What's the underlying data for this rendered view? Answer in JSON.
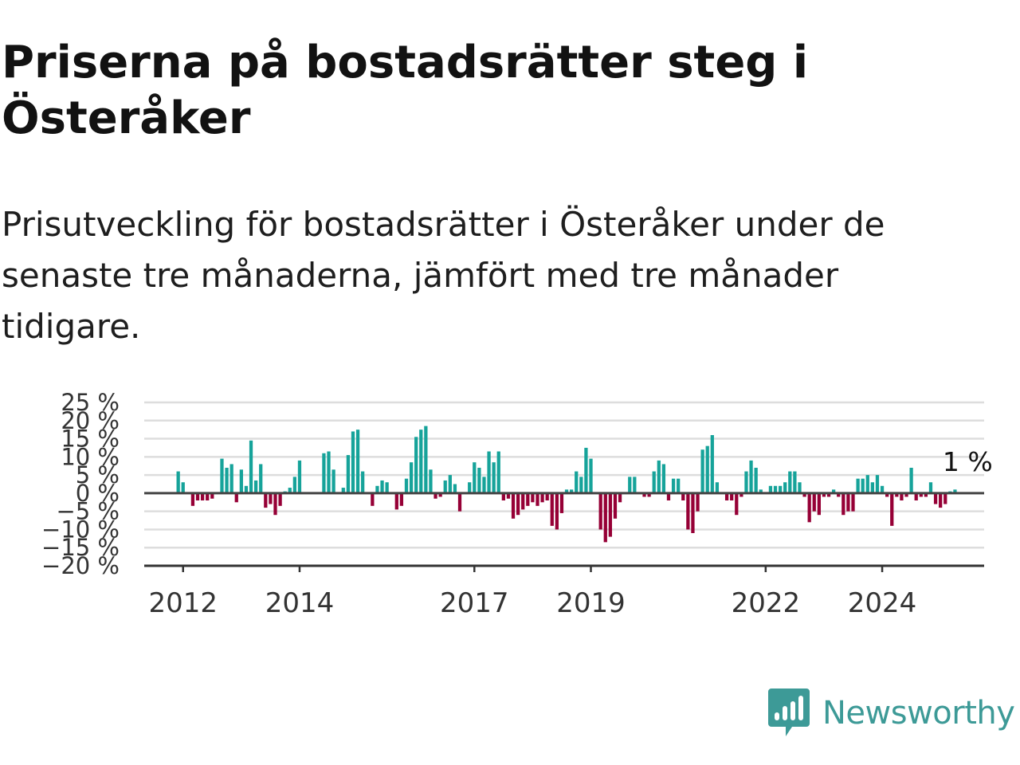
{
  "title": "Priserna på bostadsrätter steg i Österåker",
  "subtitle": "Prisutveckling för bostadsrätter i Österåker under de senaste tre månaderna, jämfört med tre månader tidigare.",
  "brand": {
    "name": "Newsworthy",
    "color": "#3d9a97"
  },
  "chart_data": {
    "type": "bar",
    "title": "",
    "xlabel": "",
    "ylabel": "",
    "ylim": [
      -20,
      25
    ],
    "xlim": [
      "2011-05",
      "2025-10"
    ],
    "grid": true,
    "colors": {
      "positive": "#16a39a",
      "negative": "#960036",
      "grid": "#dddddd",
      "zero": "#444444"
    },
    "y_ticks": [
      {
        "value": 25,
        "label": "25 %"
      },
      {
        "value": 20,
        "label": "20 %"
      },
      {
        "value": 15,
        "label": "15 %"
      },
      {
        "value": 10,
        "label": "10 %"
      },
      {
        "value": 5,
        "label": "5 %"
      },
      {
        "value": 0,
        "label": "0 %"
      },
      {
        "value": -5,
        "label": "−5 %"
      },
      {
        "value": -10,
        "label": "−10 %"
      },
      {
        "value": -15,
        "label": "−15 %"
      },
      {
        "value": -20,
        "label": "−20 %"
      }
    ],
    "x_ticks": [
      {
        "date": "2012-01",
        "label": "2012"
      },
      {
        "date": "2014-01",
        "label": "2014"
      },
      {
        "date": "2017-01",
        "label": "2017"
      },
      {
        "date": "2019-01",
        "label": "2019"
      },
      {
        "date": "2022-01",
        "label": "2022"
      },
      {
        "date": "2024-01",
        "label": "2024"
      }
    ],
    "start": "2011-12",
    "values": [
      6,
      3,
      0,
      -3.5,
      -2,
      -2,
      -2,
      -1.5,
      0,
      9.5,
      7,
      8,
      -2.5,
      6.5,
      2,
      14.5,
      3.5,
      8,
      -4,
      -3,
      -6,
      -3.5,
      0.5,
      1.5,
      4.5,
      9,
      0,
      0,
      0,
      0,
      11,
      11.5,
      6.5,
      0,
      1.5,
      10.5,
      17,
      17.5,
      6,
      0,
      -3.5,
      2,
      3.5,
      3,
      0,
      -4.5,
      -3.5,
      4,
      8.5,
      15.5,
      17.5,
      18.5,
      6.5,
      -1.5,
      -1,
      3.5,
      5,
      2.5,
      -5,
      0,
      3,
      8.5,
      7,
      4.5,
      11.5,
      8.5,
      11.5,
      -2,
      -1.5,
      -7,
      -6,
      -4.5,
      -3.5,
      -2.5,
      -3.5,
      -2.5,
      -2,
      -9,
      -10,
      -5.5,
      1,
      1,
      6,
      4.5,
      12.5,
      9.5,
      0,
      -10,
      -13.5,
      -12,
      -7,
      -2.5,
      0,
      4.5,
      4.5,
      0,
      -1,
      -1,
      6,
      9,
      8,
      -2,
      4,
      4,
      -2,
      -10,
      -11,
      -5,
      12,
      13,
      16,
      3,
      0,
      -2,
      -2,
      -6,
      -1,
      6,
      9,
      7,
      1,
      0,
      2,
      2,
      2,
      3,
      6,
      6,
      3,
      -1,
      -8,
      -5,
      -6,
      -1,
      -1,
      1,
      -1,
      -6,
      -5,
      -5,
      4,
      4,
      5,
      3,
      5,
      2,
      -1,
      -9,
      -1,
      -2,
      -1,
      7,
      -2,
      -1,
      -1,
      3,
      -3,
      -4,
      -3,
      0.5,
      1
    ],
    "annotation": {
      "date": "2025-02",
      "value": 1,
      "label": "1 %"
    }
  }
}
